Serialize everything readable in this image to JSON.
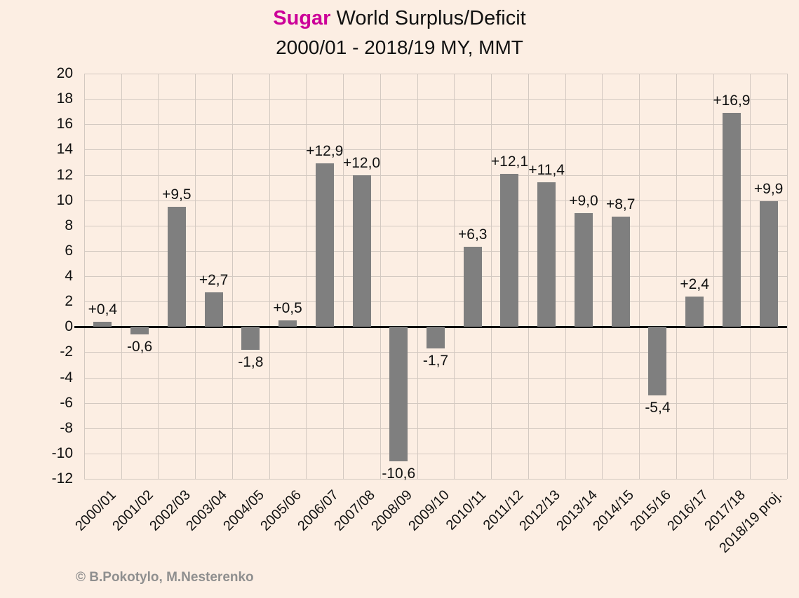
{
  "title": {
    "highlight": "Sugar",
    "rest": "World Surplus/Deficit",
    "subtitle": "2000/01 - 2018/19 MY, MMT"
  },
  "footer": {
    "copyright": "© B.Pokotylo, M.Nesterenko"
  },
  "chart_data": {
    "type": "bar",
    "title": "Sugar World Surplus/Deficit",
    "subtitle": "2000/01 - 2018/19 MY, MMT",
    "categories": [
      "2000/01",
      "2001/02",
      "2002/03",
      "2003/04",
      "2004/05",
      "2005/06",
      "2006/07",
      "2007/08",
      "2008/09",
      "2009/10",
      "2010/11",
      "2011/12",
      "2012/13",
      "2013/14",
      "2014/15",
      "2015/16",
      "2016/17",
      "2017/18",
      "2018/19 proj."
    ],
    "values": [
      0.4,
      -0.6,
      9.5,
      2.7,
      -1.8,
      0.5,
      12.9,
      12.0,
      -10.6,
      -1.7,
      6.3,
      12.1,
      11.4,
      9.0,
      8.7,
      -5.4,
      2.4,
      16.9,
      9.9
    ],
    "value_labels": [
      "+0,4",
      "-0,6",
      "+9,5",
      "+2,7",
      "-1,8",
      "+0,5",
      "+12,9",
      "+12,0",
      "-10,6",
      "-1,7",
      "+6,3",
      "+12,1",
      "+11,4",
      "+9,0",
      "+8,7",
      "-5,4",
      "+2,4",
      "+16,9",
      "+9,9"
    ],
    "ylim": [
      -12,
      20
    ],
    "yticks": [
      20,
      18,
      16,
      14,
      12,
      10,
      8,
      6,
      4,
      2,
      0,
      -2,
      -4,
      -6,
      -8,
      -10,
      -12
    ],
    "xlabel": "",
    "ylabel": "",
    "grid": true,
    "legend": "none",
    "colors": {
      "bar": "#7f7f7f",
      "accent": "#cc0099",
      "background": "#fceee3",
      "gridline": "#d3c9c1",
      "zero_line": "#000000",
      "text": "#111111",
      "copyright": "#8f8f8f"
    }
  }
}
